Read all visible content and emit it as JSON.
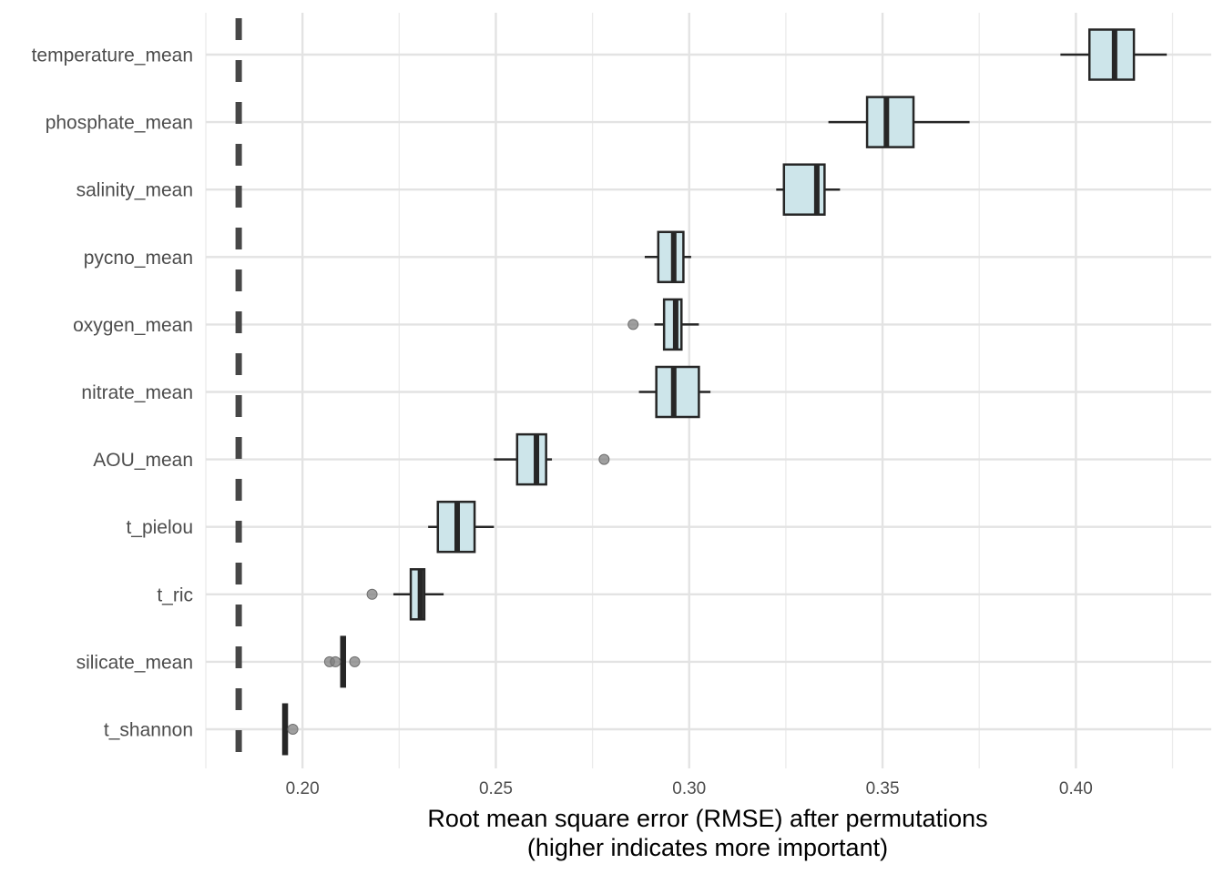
{
  "chart_data": {
    "type": "boxplot",
    "orientation": "horizontal",
    "xlabel_lines": [
      "Root mean square error (RMSE) after permutations",
      "(higher indicates more important)"
    ],
    "xlim": [
      0.175,
      0.435
    ],
    "x_ticks": [
      0.2,
      0.25,
      0.3,
      0.35,
      0.4
    ],
    "x_tick_labels": [
      "0.20",
      "0.25",
      "0.30",
      "0.35",
      "0.40"
    ],
    "reference_line": {
      "x": 0.1835,
      "style": "dashed"
    },
    "grid": true,
    "box_fill": "#cde5ea",
    "box_stroke": "#262626",
    "outlier_color": "#808080",
    "ref_line_color": "#474747",
    "categories": [
      {
        "name": "temperature_mean",
        "lower_whisker": 0.396,
        "q1": 0.4035,
        "median": 0.41,
        "q3": 0.415,
        "upper_whisker": 0.4235,
        "outliers": []
      },
      {
        "name": "phosphate_mean",
        "lower_whisker": 0.336,
        "q1": 0.346,
        "median": 0.351,
        "q3": 0.358,
        "upper_whisker": 0.3725,
        "outliers": []
      },
      {
        "name": "salinity_mean",
        "lower_whisker": 0.3225,
        "q1": 0.3245,
        "median": 0.333,
        "q3": 0.335,
        "upper_whisker": 0.339,
        "outliers": []
      },
      {
        "name": "pycno_mean",
        "lower_whisker": 0.2885,
        "q1": 0.292,
        "median": 0.296,
        "q3": 0.2985,
        "upper_whisker": 0.3005,
        "outliers": []
      },
      {
        "name": "oxygen_mean",
        "lower_whisker": 0.291,
        "q1": 0.2935,
        "median": 0.2965,
        "q3": 0.298,
        "upper_whisker": 0.3025,
        "outliers": [
          0.2855
        ]
      },
      {
        "name": "nitrate_mean",
        "lower_whisker": 0.287,
        "q1": 0.2915,
        "median": 0.296,
        "q3": 0.3025,
        "upper_whisker": 0.3055,
        "outliers": []
      },
      {
        "name": "AOU_mean",
        "lower_whisker": 0.2495,
        "q1": 0.2555,
        "median": 0.2605,
        "q3": 0.263,
        "upper_whisker": 0.2645,
        "outliers": [
          0.278
        ]
      },
      {
        "name": "t_pielou",
        "lower_whisker": 0.2325,
        "q1": 0.235,
        "median": 0.24,
        "q3": 0.2445,
        "upper_whisker": 0.2495,
        "outliers": []
      },
      {
        "name": "t_ric",
        "lower_whisker": 0.2235,
        "q1": 0.228,
        "median": 0.2305,
        "q3": 0.2315,
        "upper_whisker": 0.2365,
        "outliers": [
          0.218
        ]
      },
      {
        "name": "silicate_mean",
        "lower_whisker": 0.2105,
        "q1": 0.2105,
        "median": 0.2105,
        "q3": 0.2105,
        "upper_whisker": 0.2105,
        "outliers": [
          0.207,
          0.2085,
          0.2135
        ]
      },
      {
        "name": "t_shannon",
        "lower_whisker": 0.1955,
        "q1": 0.1955,
        "median": 0.1955,
        "q3": 0.1955,
        "upper_whisker": 0.1955,
        "outliers": [
          0.1975
        ]
      }
    ]
  }
}
